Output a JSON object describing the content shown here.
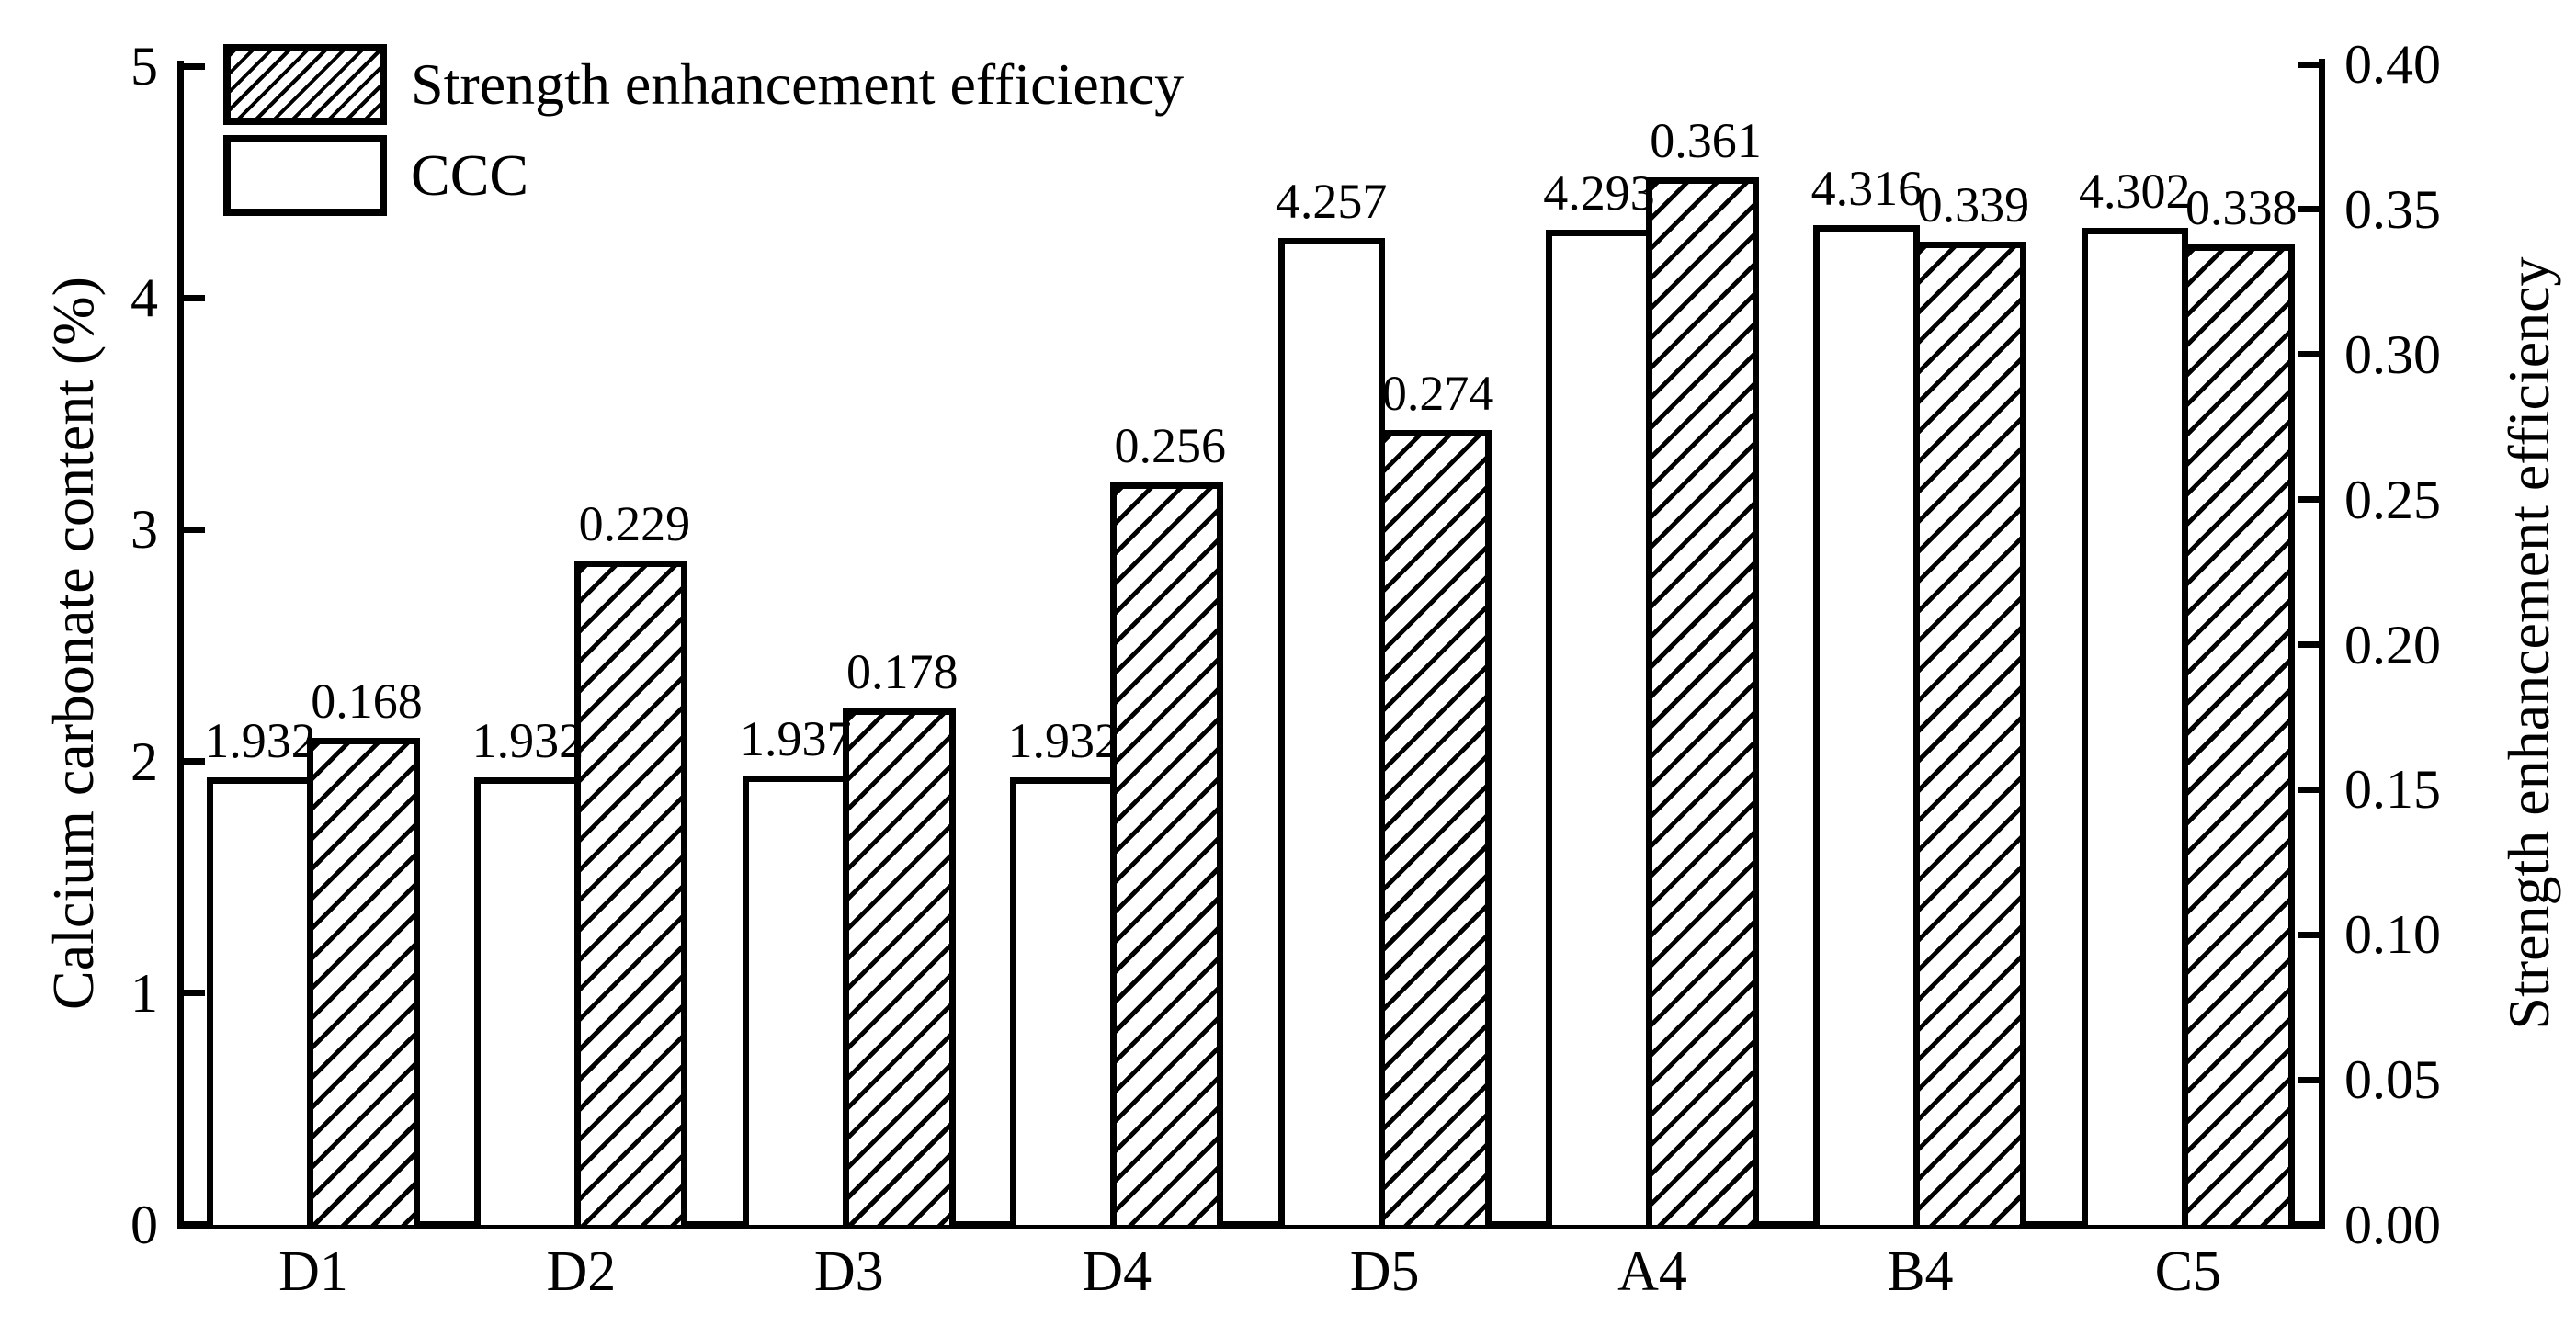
{
  "figure": {
    "background": "#ffffff",
    "ink": "#000000"
  },
  "legend": {
    "items": [
      {
        "label": "Strength enhancement efficiency",
        "swatch": "hatched"
      },
      {
        "label": "CCC",
        "swatch": "plain"
      }
    ]
  },
  "chart_data": {
    "type": "bar",
    "title": "",
    "categories": [
      "D1",
      "D2",
      "D3",
      "D4",
      "D5",
      "A4",
      "B4",
      "C5"
    ],
    "series": [
      {
        "name": "CCC",
        "axis": "left",
        "pattern": "plain",
        "values": [
          1.932,
          1.932,
          1.937,
          1.932,
          4.257,
          4.293,
          4.316,
          4.302
        ],
        "labels": [
          "1.932",
          "1.932",
          "1.937",
          "1.932",
          "4.257",
          "4.293",
          "4.316",
          "4.302"
        ]
      },
      {
        "name": "Strength enhancement efficiency",
        "axis": "right",
        "pattern": "hatched",
        "values": [
          0.168,
          0.229,
          0.178,
          0.256,
          0.274,
          0.361,
          0.339,
          0.338
        ],
        "labels": [
          "0.168",
          "0.229",
          "0.178",
          "0.256",
          "0.274",
          "0.361",
          "0.339",
          "0.338"
        ]
      }
    ],
    "left_axis": {
      "label": "Calcium carbonate content (%)",
      "min": 0,
      "max": 5,
      "tick_labels": [
        "0",
        "1",
        "2",
        "3",
        "4",
        "5"
      ]
    },
    "right_axis": {
      "label": "Strength enhancement efficiency",
      "min": 0,
      "max": 0.4,
      "tick_labels": [
        "0.00",
        "0.05",
        "0.10",
        "0.15",
        "0.20",
        "0.25",
        "0.30",
        "0.35",
        "0.40"
      ]
    },
    "grid": false,
    "legend_position": "top-left-inside",
    "value_labels_shown": true
  }
}
